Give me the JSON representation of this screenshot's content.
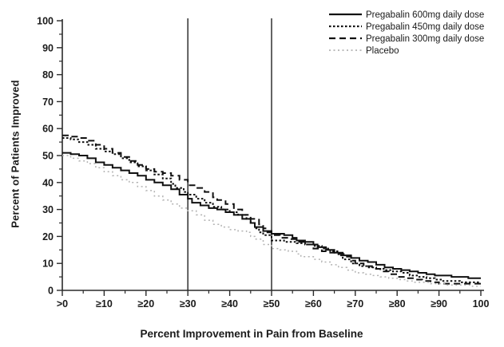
{
  "chart_data": {
    "type": "line",
    "title": "",
    "xlabel": "Percent Improvement in Pain from Baseline",
    "ylabel": "Percent of Patients Improved",
    "xlim": [
      0,
      100
    ],
    "ylim": [
      0,
      100
    ],
    "grid": false,
    "legend_position": "top-right",
    "x_tick_values": [
      0,
      10,
      20,
      30,
      40,
      50,
      60,
      70,
      80,
      90,
      100
    ],
    "x_tick_labels": [
      ">0",
      "≥10",
      "≥20",
      "≥30",
      "≥40",
      "≥50",
      "≥60",
      "≥70",
      "≥80",
      "≥90",
      "100"
    ],
    "y_tick_values": [
      0,
      10,
      20,
      30,
      40,
      50,
      60,
      70,
      80,
      90,
      100
    ],
    "y_tick_labels": [
      "0",
      "10",
      "20",
      "30",
      "40",
      "50",
      "60",
      "70",
      "80",
      "90",
      "100"
    ],
    "minor_tick_step": 5,
    "reference_lines_x": [
      30,
      50
    ],
    "axis_color": "#2a2a2a",
    "reference_line_color": "#3d3d3d",
    "series": [
      {
        "name": "Pregabalin 600mg daily dose",
        "color": "#111111",
        "dash": "",
        "width": 2,
        "points": [
          [
            0,
            51
          ],
          [
            2,
            50.5
          ],
          [
            4,
            50
          ],
          [
            6,
            49
          ],
          [
            8,
            47.5
          ],
          [
            10,
            46.5
          ],
          [
            12,
            45.5
          ],
          [
            14,
            44.5
          ],
          [
            16,
            43.5
          ],
          [
            18,
            42.5
          ],
          [
            20,
            41
          ],
          [
            22,
            40
          ],
          [
            24,
            39
          ],
          [
            26,
            37.5
          ],
          [
            28,
            35.5
          ],
          [
            30,
            34
          ],
          [
            31,
            32.5
          ],
          [
            33,
            31.5
          ],
          [
            35,
            30.5
          ],
          [
            37,
            30
          ],
          [
            39,
            29
          ],
          [
            41,
            28
          ],
          [
            43,
            26.5
          ],
          [
            45,
            25
          ],
          [
            46,
            23.5
          ],
          [
            48,
            22
          ],
          [
            50,
            21
          ],
          [
            53,
            20.5
          ],
          [
            55,
            19.5
          ],
          [
            56,
            18.5
          ],
          [
            58,
            18
          ],
          [
            60,
            17
          ],
          [
            61,
            16
          ],
          [
            63,
            15
          ],
          [
            65,
            14
          ],
          [
            67,
            13
          ],
          [
            69,
            12
          ],
          [
            71,
            11
          ],
          [
            73,
            10.5
          ],
          [
            75,
            9.5
          ],
          [
            77,
            8.5
          ],
          [
            79,
            8
          ],
          [
            81,
            7.5
          ],
          [
            83,
            7
          ],
          [
            85,
            6.5
          ],
          [
            87,
            6
          ],
          [
            89,
            5.5
          ],
          [
            91,
            5.5
          ],
          [
            93,
            5
          ],
          [
            95,
            5
          ],
          [
            97,
            4.5
          ],
          [
            100,
            4.5
          ]
        ]
      },
      {
        "name": "Pregabalin 450mg daily dose",
        "color": "#111111",
        "dash": "2.5 2.5",
        "width": 2,
        "points": [
          [
            0,
            56.5
          ],
          [
            2,
            56
          ],
          [
            4,
            55
          ],
          [
            6,
            54
          ],
          [
            8,
            52.5
          ],
          [
            10,
            51.5
          ],
          [
            12,
            50.5
          ],
          [
            14,
            49
          ],
          [
            16,
            47.5
          ],
          [
            18,
            46
          ],
          [
            20,
            44.5
          ],
          [
            22,
            43
          ],
          [
            24,
            41.5
          ],
          [
            26,
            39.5
          ],
          [
            27,
            38
          ],
          [
            29,
            36.5
          ],
          [
            30,
            35.5
          ],
          [
            32,
            34
          ],
          [
            34,
            32.5
          ],
          [
            36,
            31
          ],
          [
            38,
            30
          ],
          [
            40,
            29
          ],
          [
            42,
            28
          ],
          [
            44,
            26.5
          ],
          [
            45,
            25
          ],
          [
            46,
            23
          ],
          [
            47,
            21.5
          ],
          [
            48,
            20.5
          ],
          [
            50,
            18.5
          ],
          [
            53,
            18
          ],
          [
            56,
            17.5
          ],
          [
            58,
            17
          ],
          [
            60,
            16.5
          ],
          [
            62,
            15.5
          ],
          [
            64,
            14.5
          ],
          [
            66,
            13
          ],
          [
            67,
            11.5
          ],
          [
            69,
            10
          ],
          [
            71,
            9
          ],
          [
            73,
            8.5
          ],
          [
            75,
            8
          ],
          [
            77,
            7.5
          ],
          [
            79,
            7
          ],
          [
            81,
            6.5
          ],
          [
            83,
            5.5
          ],
          [
            85,
            5
          ],
          [
            87,
            4.5
          ],
          [
            89,
            4
          ],
          [
            91,
            3.5
          ],
          [
            93,
            3.5
          ],
          [
            95,
            3
          ],
          [
            100,
            3
          ]
        ]
      },
      {
        "name": "Pregabalin 300mg daily dose",
        "color": "#111111",
        "dash": "8 5",
        "width": 2,
        "points": [
          [
            0,
            57.5
          ],
          [
            2,
            57
          ],
          [
            4,
            56.5
          ],
          [
            6,
            55.5
          ],
          [
            8,
            54
          ],
          [
            10,
            52.5
          ],
          [
            12,
            51
          ],
          [
            14,
            49.5
          ],
          [
            16,
            48
          ],
          [
            18,
            46.5
          ],
          [
            20,
            45
          ],
          [
            22,
            44
          ],
          [
            24,
            43.5
          ],
          [
            26,
            42.5
          ],
          [
            28,
            41
          ],
          [
            30,
            39
          ],
          [
            32,
            38
          ],
          [
            34,
            36.5
          ],
          [
            36,
            34.5
          ],
          [
            37,
            33.5
          ],
          [
            39,
            32
          ],
          [
            41,
            30
          ],
          [
            43,
            28
          ],
          [
            45,
            26.5
          ],
          [
            47,
            24.5
          ],
          [
            48,
            23
          ],
          [
            49,
            21.5
          ],
          [
            50,
            20.5
          ],
          [
            52,
            19.5
          ],
          [
            54,
            19
          ],
          [
            56,
            18
          ],
          [
            58,
            17
          ],
          [
            60,
            15.5
          ],
          [
            62,
            14.5
          ],
          [
            64,
            14
          ],
          [
            66,
            13.5
          ],
          [
            68,
            12.5
          ],
          [
            69,
            11
          ],
          [
            70,
            10
          ],
          [
            72,
            9
          ],
          [
            74,
            8
          ],
          [
            76,
            7
          ],
          [
            78,
            6
          ],
          [
            80,
            5
          ],
          [
            82,
            4.5
          ],
          [
            84,
            4
          ],
          [
            86,
            3.5
          ],
          [
            88,
            3
          ],
          [
            90,
            2.5
          ],
          [
            95,
            2.5
          ],
          [
            100,
            2.5
          ]
        ]
      },
      {
        "name": "Placebo",
        "color": "#b2b2b2",
        "dash": "2 3.5",
        "width": 1.5,
        "points": [
          [
            0,
            50
          ],
          [
            2,
            49
          ],
          [
            4,
            48
          ],
          [
            6,
            47
          ],
          [
            8,
            45.5
          ],
          [
            10,
            44
          ],
          [
            12,
            42.5
          ],
          [
            14,
            41
          ],
          [
            16,
            40
          ],
          [
            18,
            38.5
          ],
          [
            20,
            37
          ],
          [
            22,
            35
          ],
          [
            24,
            33.5
          ],
          [
            26,
            32
          ],
          [
            28,
            30.5
          ],
          [
            30,
            29.5
          ],
          [
            32,
            28
          ],
          [
            34,
            26
          ],
          [
            36,
            24.5
          ],
          [
            38,
            23.5
          ],
          [
            40,
            22.5
          ],
          [
            42,
            22
          ],
          [
            44,
            21.5
          ],
          [
            45,
            20
          ],
          [
            46,
            19
          ],
          [
            48,
            17
          ],
          [
            50,
            15.5
          ],
          [
            52,
            15
          ],
          [
            54,
            14.5
          ],
          [
            56,
            13.5
          ],
          [
            57,
            12.5
          ],
          [
            60,
            11.5
          ],
          [
            62,
            10.5
          ],
          [
            64,
            9.5
          ],
          [
            66,
            8.5
          ],
          [
            68,
            7.5
          ],
          [
            70,
            6.5
          ],
          [
            72,
            6
          ],
          [
            74,
            5.5
          ],
          [
            76,
            5
          ],
          [
            78,
            4.5
          ],
          [
            80,
            4
          ],
          [
            82,
            3.5
          ],
          [
            84,
            3
          ],
          [
            86,
            3
          ],
          [
            88,
            2.5
          ],
          [
            90,
            2.5
          ],
          [
            92,
            2
          ],
          [
            96,
            2
          ],
          [
            98,
            1.5
          ],
          [
            100,
            1.5
          ]
        ]
      }
    ]
  }
}
